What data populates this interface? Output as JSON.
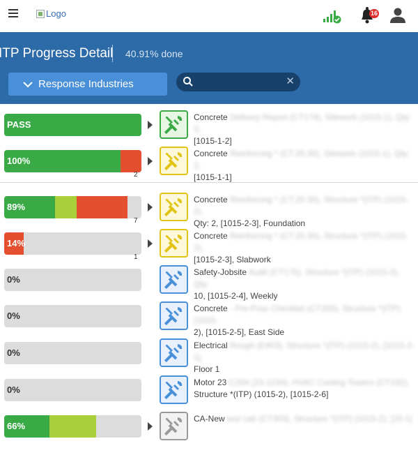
{
  "topbar": {
    "logo_alt": "Logo",
    "notification_count": "16"
  },
  "header": {
    "title": "ITP Progress Detail",
    "progress": "40.91% done",
    "dropdown_label": "Response Industries",
    "search_placeholder": ""
  },
  "colors": {
    "band": "#2c6aa8",
    "green": "#3aaa46",
    "lime": "#a9cf3b",
    "red": "#e4502f",
    "grey": "#dcdcdc"
  },
  "rows": [
    {
      "label": "PASS",
      "count": "",
      "icon_color": "green",
      "segments": [
        {
          "c": "green",
          "p": 100
        }
      ],
      "desc_start": "Concrete",
      "desc_blur": " Delivery Report (CT174), Sitework (1015-1), Qty: 3,",
      "desc_line2": "[1015-1-2]"
    },
    {
      "label": "100%",
      "count": "2",
      "icon_color": "yellow",
      "segments": [
        {
          "c": "green",
          "p": 85
        },
        {
          "c": "red",
          "p": 15
        }
      ],
      "desc_start": "Concrete",
      "desc_blur": " Reinforcing * (CT.20.30), Sitework (1015-1), Qty: 2,",
      "desc_line2": "[1015-1-1]"
    },
    {
      "label": "89%",
      "count": "7",
      "icon_color": "yellow",
      "segments": [
        {
          "c": "green",
          "p": 37
        },
        {
          "c": "lime",
          "p": 16
        },
        {
          "c": "red",
          "p": 37
        }
      ],
      "desc_start": "Concrete",
      "desc_blur": " Reinforcing * (CT.20.30), Structure *(ITP) (1015-2),",
      "desc_line2": "Qty: 2, [1015-2-3], Foundation"
    },
    {
      "label": "14%",
      "count": "1",
      "icon_color": "yellow",
      "segments": [
        {
          "c": "red",
          "p": 14
        }
      ],
      "desc_start": "Concrete",
      "desc_blur": " Reinforcing * (CT.20.30), Structure *(ITP) (1015-2),",
      "desc_line2": "[1015-2-3], Slabwork"
    },
    {
      "label": "0%",
      "count": "",
      "icon_color": "blue",
      "segments": [],
      "desc_start": "Safety-Jobsite",
      "desc_blur": " Audit (CT175), Structure *(ITP) (1015-2), Qty:",
      "desc_line2": "10, [1015-2-4], Weekly"
    },
    {
      "label": "0%",
      "count": "",
      "icon_color": "blue",
      "segments": [],
      "desc_start": "Concrete",
      "desc_blur": " - Pre-Pour Checklist (CT200), Structure *(ITP) (1015-",
      "desc_line2": "2), [1015-2-5], East Side"
    },
    {
      "label": "0%",
      "count": "",
      "icon_color": "blue",
      "segments": [],
      "desc_start": "Electrical",
      "desc_blur": " Rough (E403), Structure *(ITP) (1015-2), [1015-2-1],",
      "desc_line2": "Floor 1"
    },
    {
      "label": "0%",
      "count": "",
      "icon_color": "blue",
      "segments": [],
      "desc_start": "Motor 23",
      "desc_blur": " C204 (23-1234), HVAC Cooling Towers (CT192),",
      "desc_line2": "Structure *(ITP) (1015-2), [1015-2-6]"
    },
    {
      "label": "66%",
      "count": "",
      "icon_color": "grey",
      "segments": [
        {
          "c": "green",
          "p": 33
        },
        {
          "c": "lime",
          "p": 34
        }
      ],
      "desc_start": "CA-New",
      "desc_blur": " test cab (CT303), Structure *(ITP) (1015-2), [15-1]",
      "desc_line2": ""
    }
  ]
}
